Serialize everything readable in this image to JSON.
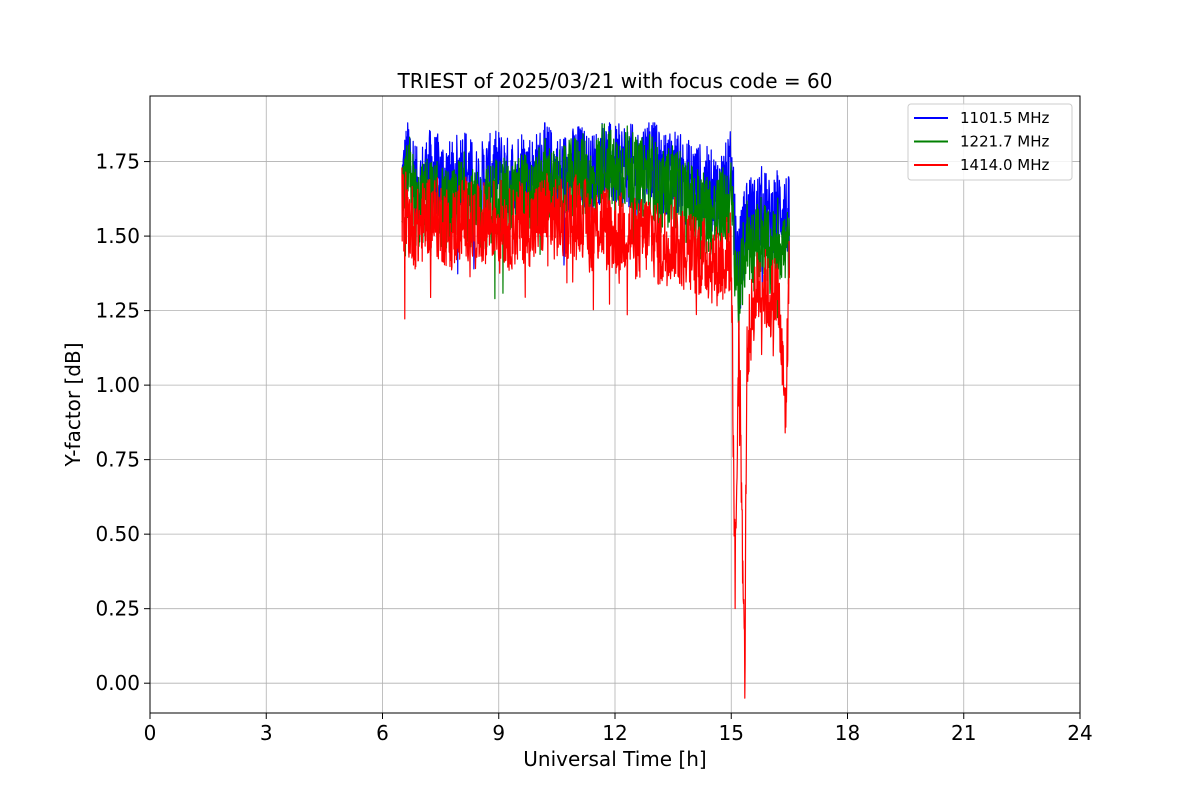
{
  "chart_data": {
    "type": "line",
    "title": "TRIEST of 2025/03/21 with focus code = 60",
    "xlabel": "Universal Time [h]",
    "ylabel": "Y-factor [dB]",
    "xlim": [
      0,
      24
    ],
    "ylim": [
      -0.1,
      1.97
    ],
    "xticks": [
      0,
      3,
      6,
      9,
      12,
      15,
      18,
      21,
      24
    ],
    "xtick_labels": [
      "0",
      "3",
      "6",
      "9",
      "12",
      "15",
      "18",
      "21",
      "24"
    ],
    "yticks": [
      0.0,
      0.25,
      0.5,
      0.75,
      1.0,
      1.25,
      1.5,
      1.75
    ],
    "ytick_labels": [
      "0.00",
      "0.25",
      "0.50",
      "0.75",
      "1.00",
      "1.25",
      "1.50",
      "1.75"
    ],
    "grid": true,
    "legend_position": "top-right",
    "series": [
      {
        "name": "1101.5 MHz",
        "color": "#0000ff",
        "x": [
          6.5,
          6.7,
          6.9,
          7.2,
          7.5,
          7.8,
          8.1,
          8.4,
          8.7,
          9.0,
          9.3,
          9.6,
          9.9,
          10.2,
          10.5,
          10.8,
          11.1,
          11.4,
          11.7,
          12.0,
          12.3,
          12.6,
          12.9,
          13.2,
          13.5,
          13.8,
          14.1,
          14.4,
          14.6,
          14.8,
          15.0,
          15.1,
          15.2,
          15.4,
          15.6,
          15.8,
          16.0,
          16.2,
          16.4,
          16.5
        ],
        "y": [
          1.68,
          1.78,
          1.65,
          1.72,
          1.7,
          1.68,
          1.74,
          1.66,
          1.7,
          1.72,
          1.69,
          1.73,
          1.7,
          1.75,
          1.7,
          1.72,
          1.74,
          1.7,
          1.76,
          1.73,
          1.75,
          1.72,
          1.78,
          1.7,
          1.73,
          1.69,
          1.68,
          1.66,
          1.64,
          1.66,
          1.72,
          1.5,
          1.4,
          1.58,
          1.56,
          1.6,
          1.55,
          1.6,
          1.58,
          1.56
        ]
      },
      {
        "name": "1221.7 MHz",
        "color": "#008000",
        "x": [
          6.5,
          6.7,
          6.9,
          7.2,
          7.5,
          7.8,
          8.1,
          8.4,
          8.7,
          9.0,
          9.3,
          9.6,
          9.9,
          10.2,
          10.5,
          10.8,
          11.1,
          11.4,
          11.7,
          12.0,
          12.3,
          12.6,
          12.9,
          13.2,
          13.5,
          13.8,
          14.1,
          14.4,
          14.6,
          14.8,
          15.0,
          15.1,
          15.2,
          15.4,
          15.6,
          15.8,
          16.0,
          16.2,
          16.4,
          16.5
        ],
        "y": [
          1.62,
          1.7,
          1.58,
          1.64,
          1.6,
          1.58,
          1.65,
          1.57,
          1.6,
          1.64,
          1.6,
          1.65,
          1.62,
          1.7,
          1.64,
          1.68,
          1.72,
          1.66,
          1.76,
          1.7,
          1.74,
          1.68,
          1.72,
          1.64,
          1.68,
          1.62,
          1.6,
          1.58,
          1.56,
          1.6,
          1.62,
          1.42,
          1.3,
          1.5,
          1.45,
          1.52,
          1.42,
          1.5,
          1.45,
          1.47
        ]
      },
      {
        "name": "1414.0 MHz",
        "color": "#ff0000",
        "x": [
          6.5,
          6.7,
          6.9,
          7.2,
          7.5,
          7.8,
          8.1,
          8.4,
          8.7,
          9.0,
          9.3,
          9.6,
          9.9,
          10.2,
          10.5,
          10.8,
          11.1,
          11.4,
          11.7,
          12.0,
          12.3,
          12.6,
          12.9,
          13.2,
          13.5,
          13.8,
          14.1,
          14.4,
          14.6,
          14.8,
          15.0,
          15.1,
          15.2,
          15.35,
          15.4,
          15.6,
          15.8,
          16.0,
          16.2,
          16.4,
          16.5
        ],
        "y": [
          1.6,
          1.55,
          1.52,
          1.58,
          1.55,
          1.52,
          1.57,
          1.53,
          1.55,
          1.56,
          1.52,
          1.55,
          1.53,
          1.58,
          1.55,
          1.56,
          1.58,
          1.52,
          1.55,
          1.5,
          1.52,
          1.48,
          1.52,
          1.45,
          1.5,
          1.45,
          1.44,
          1.42,
          1.4,
          1.42,
          1.45,
          0.33,
          1.2,
          0.0,
          1.1,
          1.3,
          1.35,
          1.28,
          1.32,
          0.9,
          1.4
        ]
      }
    ]
  }
}
